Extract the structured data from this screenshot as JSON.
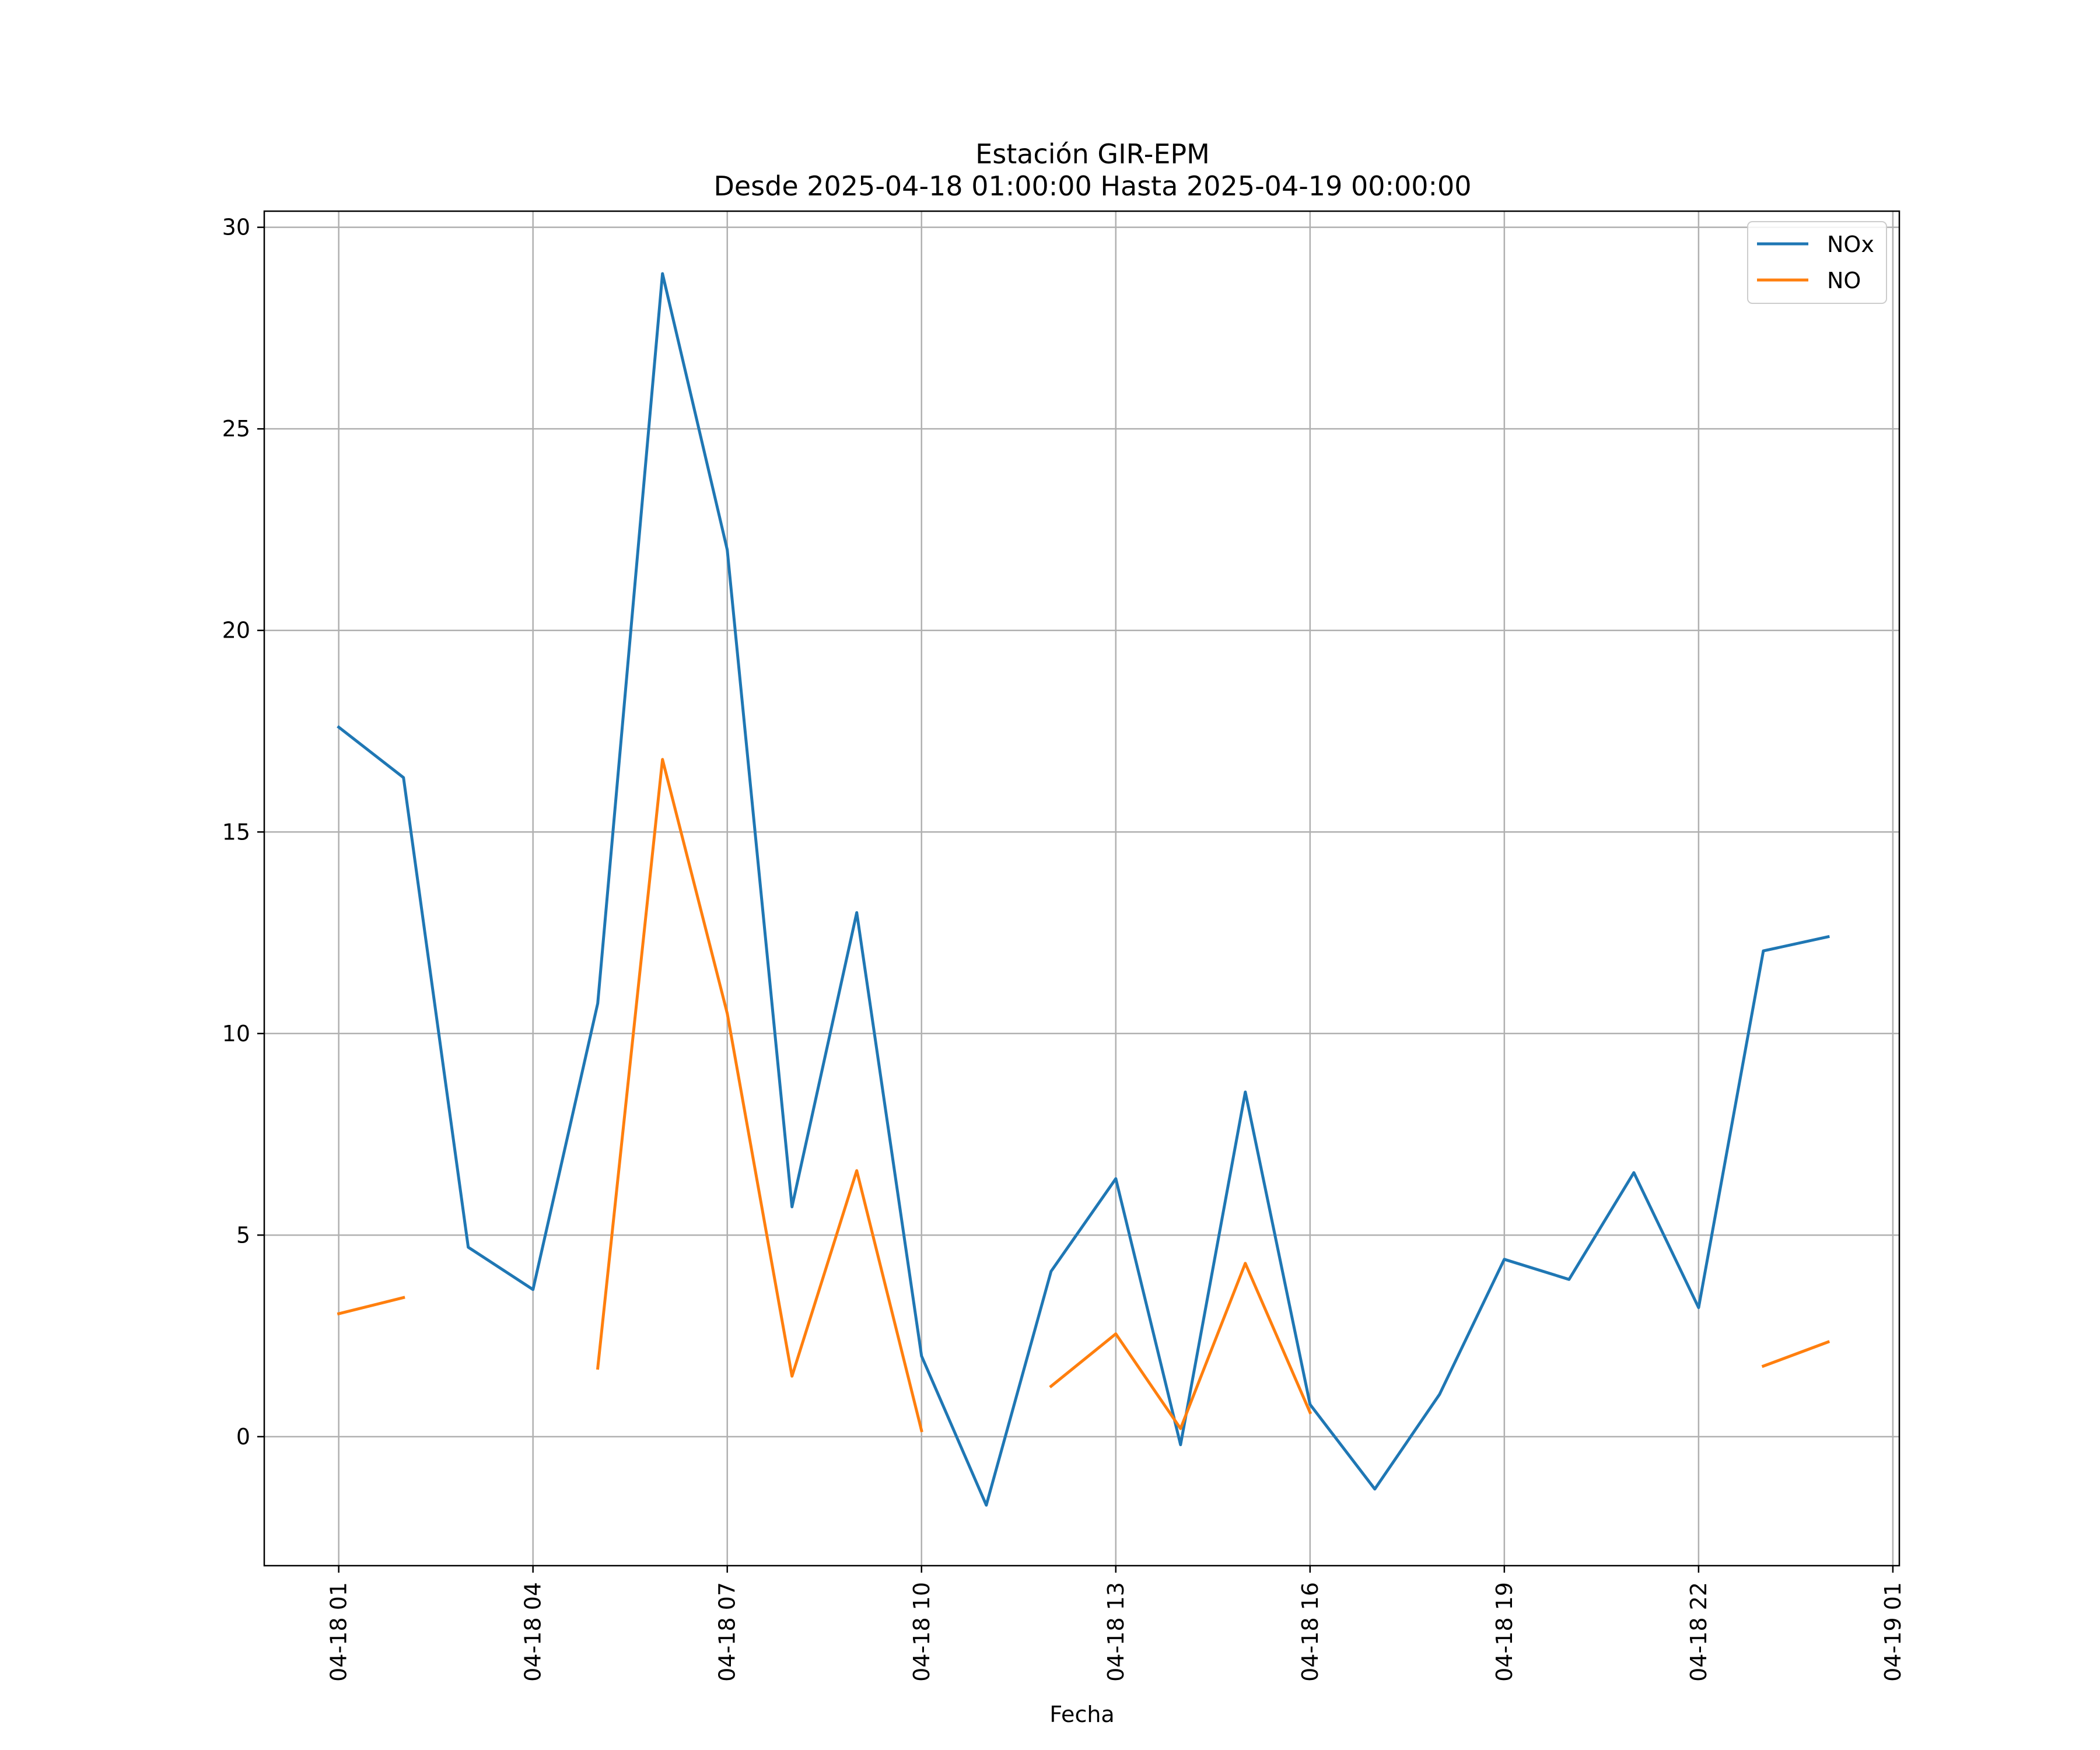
{
  "chart_data": {
    "type": "line",
    "title": "Estación GIR-EPM",
    "subtitle": "Desde 2025-04-18 01:00:00 Hasta 2025-04-19 00:00:00",
    "xlabel": "Fecha",
    "ylabel": "",
    "x": [
      "04-18 01",
      "04-18 02",
      "04-18 03",
      "04-18 04",
      "04-18 05",
      "04-18 06",
      "04-18 07",
      "04-18 08",
      "04-18 09",
      "04-18 10",
      "04-18 11",
      "04-18 12",
      "04-18 13",
      "04-18 14",
      "04-18 15",
      "04-18 16",
      "04-18 17",
      "04-18 18",
      "04-18 19",
      "04-18 20",
      "04-18 21",
      "04-18 22",
      "04-18 23",
      "04-19 00"
    ],
    "x_hours": [
      1,
      2,
      3,
      4,
      5,
      6,
      7,
      8,
      9,
      10,
      11,
      12,
      13,
      14,
      15,
      16,
      17,
      18,
      19,
      20,
      21,
      22,
      23,
      24
    ],
    "x_ticks": [
      {
        "hour": 1,
        "label": "04-18 01"
      },
      {
        "hour": 4,
        "label": "04-18 04"
      },
      {
        "hour": 7,
        "label": "04-18 07"
      },
      {
        "hour": 10,
        "label": "04-18 10"
      },
      {
        "hour": 13,
        "label": "04-18 13"
      },
      {
        "hour": 16,
        "label": "04-18 16"
      },
      {
        "hour": 19,
        "label": "04-18 19"
      },
      {
        "hour": 22,
        "label": "04-18 22"
      },
      {
        "hour": 25,
        "label": "04-19 01"
      }
    ],
    "xlim": [
      -0.15,
      25.1
    ],
    "ylim": [
      -3.2,
      30.4
    ],
    "y_ticks": [
      0,
      5,
      10,
      15,
      20,
      25,
      30
    ],
    "grid": true,
    "legend_position": "top-right",
    "series": [
      {
        "name": "NOx",
        "color": "#1f77b4",
        "values": [
          17.6,
          16.35,
          4.7,
          3.65,
          10.75,
          28.85,
          22.0,
          5.7,
          13.0,
          2.0,
          -1.7,
          4.1,
          6.4,
          -0.2,
          8.55,
          0.8,
          -1.3,
          1.05,
          4.4,
          3.9,
          6.55,
          3.2,
          12.05,
          12.4
        ]
      },
      {
        "name": "NO",
        "color": "#ff7f0e",
        "values": [
          3.05,
          3.45,
          null,
          null,
          1.7,
          16.8,
          10.5,
          1.5,
          6.6,
          0.15,
          null,
          1.25,
          2.55,
          0.2,
          4.3,
          0.6,
          null,
          null,
          null,
          null,
          null,
          null,
          1.75,
          2.35
        ]
      }
    ]
  }
}
